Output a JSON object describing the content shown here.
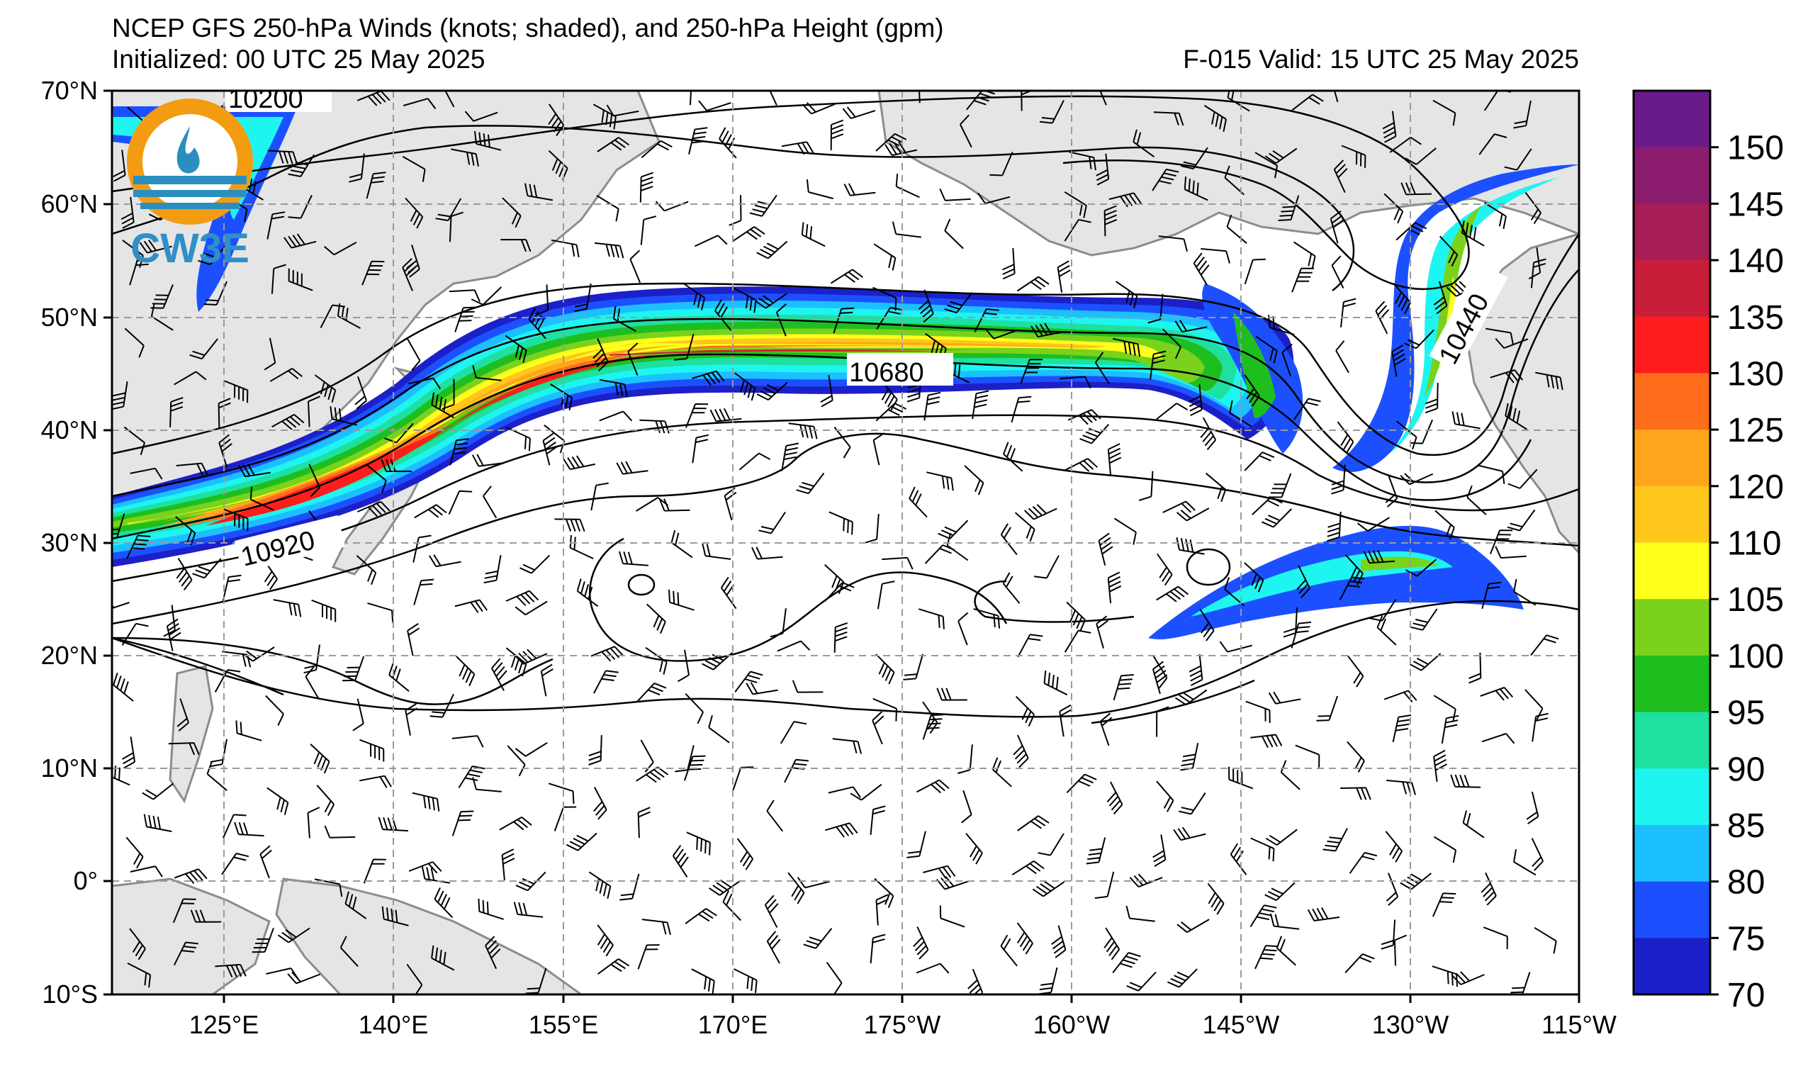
{
  "header": {
    "title": "NCEP GFS 250-hPa Winds (knots; shaded), and 250-hPa Height (gpm)",
    "initialized": "Initialized: 00 UTC 25 May 2025",
    "forecast": "F-015  Valid: 15 UTC 25 May 2025"
  },
  "logo": {
    "text": "CW3E",
    "colors": {
      "ring": "#f39c12",
      "water": "#2a8fbf",
      "text": "#2f8fc7"
    }
  },
  "axes": {
    "lat_labels": [
      "70°N",
      "60°N",
      "50°N",
      "40°N",
      "30°N",
      "20°N",
      "10°N",
      "0°",
      "10°S"
    ],
    "lon_labels": [
      "125°E",
      "140°E",
      "155°E",
      "170°E",
      "175°W",
      "160°W",
      "145°W",
      "130°W",
      "115°W"
    ]
  },
  "colorbar": {
    "labels": [
      "150",
      "145",
      "140",
      "135",
      "130",
      "125",
      "120",
      "110",
      "105",
      "100",
      "95",
      "90",
      "85",
      "80",
      "75",
      "70"
    ],
    "colors": [
      "#6a1b8a",
      "#8c1c6e",
      "#a61e55",
      "#c81e3a",
      "#ff1c1c",
      "#ff6d1c",
      "#ffa51c",
      "#ffc61c",
      "#ffff1c",
      "#7ad21c",
      "#1fbe1f",
      "#1ee0a0",
      "#1ef5f0",
      "#1cc0ff",
      "#1c50ff",
      "#1c20c8"
    ]
  },
  "contour_labels": [
    "10200",
    "10680",
    "10920",
    "10440"
  ],
  "colors": {
    "land": "#e5e5e5",
    "coast": "#8c8c8c",
    "grid": "#9a9a9a",
    "contour": "#000000"
  }
}
